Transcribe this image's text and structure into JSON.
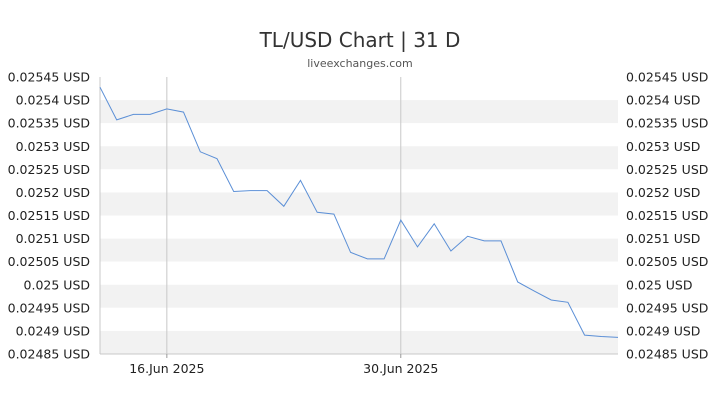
{
  "chart_data": {
    "type": "line",
    "title": "TL/USD Chart | 31 D",
    "subtitle": "liveexchanges.com",
    "xlabel": "",
    "ylabel": "",
    "y_unit": "USD",
    "ylim": [
      0.02485,
      0.02545
    ],
    "y_ticks": [
      0.02545,
      0.0254,
      0.02535,
      0.0253,
      0.02525,
      0.0252,
      0.02515,
      0.0251,
      0.02505,
      0.025,
      0.02495,
      0.0249,
      0.02485
    ],
    "y_tick_labels": [
      "0.02545 USD",
      "0.0254 USD",
      "0.02535 USD",
      "0.0253 USD",
      "0.02525 USD",
      "0.0252 USD",
      "0.02515 USD",
      "0.0251 USD",
      "0.02505 USD",
      "0.025 USD",
      "0.02495 USD",
      "0.0249 USD",
      "0.02485 USD"
    ],
    "x_ticks": [
      {
        "label": "16.Jun 2025",
        "date": "2025-06-16"
      },
      {
        "label": "30.Jun 2025",
        "date": "2025-06-30"
      }
    ],
    "x_range": [
      "2025-06-12",
      "2025-07-13"
    ],
    "grid": "alternating horizontal bands, vertical lines at x ticks",
    "legend": "none",
    "series_color": "#5b8fd6",
    "band_color": "#f2f2f2",
    "x": [
      "2025-06-12",
      "2025-06-13",
      "2025-06-14",
      "2025-06-15",
      "2025-06-16",
      "2025-06-17",
      "2025-06-18",
      "2025-06-19",
      "2025-06-20",
      "2025-06-21",
      "2025-06-22",
      "2025-06-23",
      "2025-06-24",
      "2025-06-25",
      "2025-06-26",
      "2025-06-27",
      "2025-06-28",
      "2025-06-29",
      "2025-06-30",
      "2025-07-01",
      "2025-07-02",
      "2025-07-03",
      "2025-07-04",
      "2025-07-05",
      "2025-07-06",
      "2025-07-07",
      "2025-07-08",
      "2025-07-09",
      "2025-07-10",
      "2025-07-11",
      "2025-07-12",
      "2025-07-13"
    ],
    "values": [
      0.025428,
      0.025357,
      0.025369,
      0.025369,
      0.025381,
      0.025374,
      0.025288,
      0.025273,
      0.025202,
      0.025204,
      0.025204,
      0.02517,
      0.025226,
      0.025157,
      0.025153,
      0.02507,
      0.025056,
      0.025056,
      0.02514,
      0.025082,
      0.025132,
      0.025073,
      0.025105,
      0.025095,
      0.025095,
      0.025006,
      0.024986,
      0.024967,
      0.024962,
      0.024891,
      0.024888,
      0.024886
    ]
  }
}
